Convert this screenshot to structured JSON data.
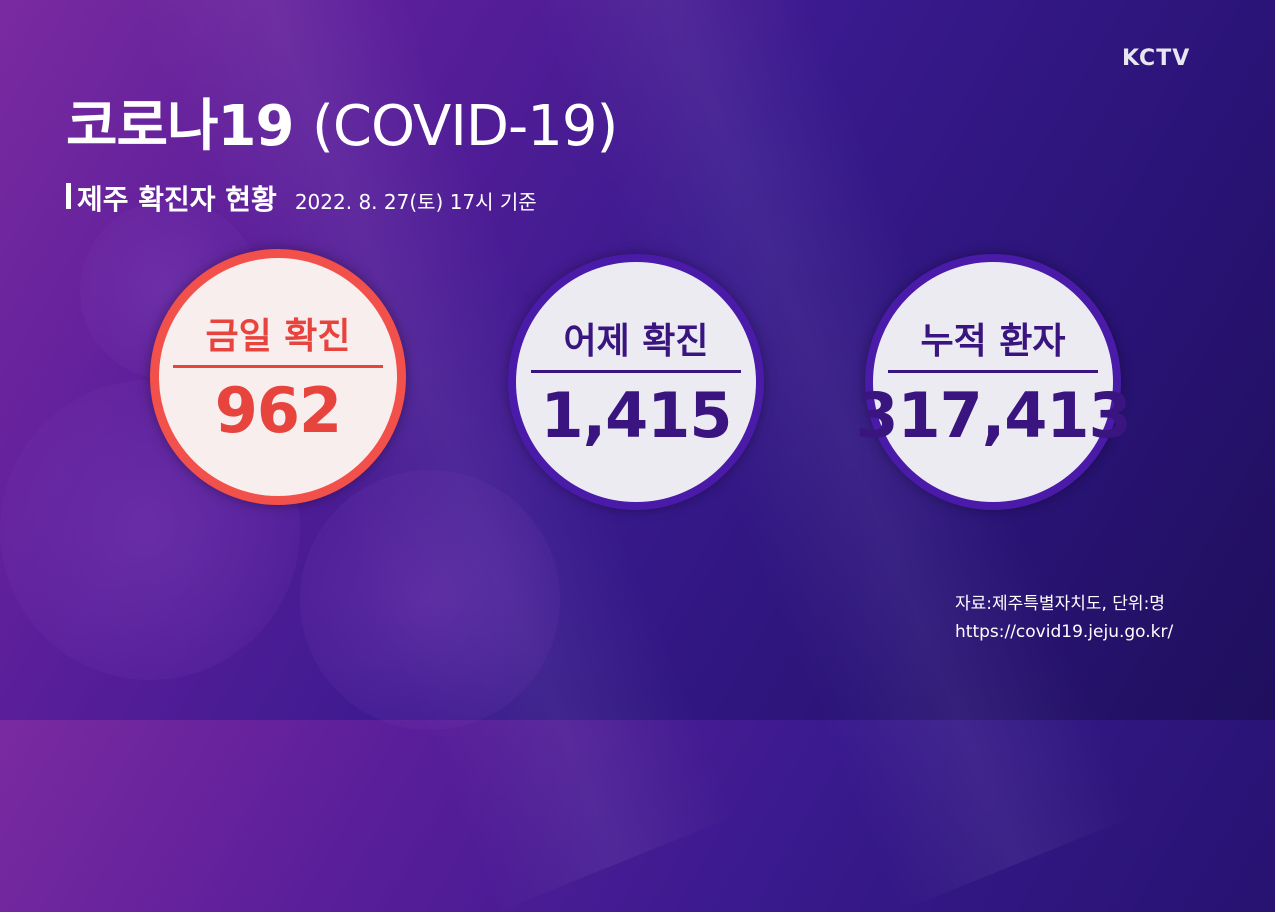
{
  "channel_logo": "KCTV",
  "title": {
    "ko": "코로나19",
    "en": "(COVID-19)"
  },
  "subtitle": {
    "label": "제주 확진자 현황",
    "date": "2022. 8. 27(토) 17시 기준"
  },
  "stats": [
    {
      "label": "금일 확진",
      "value": "962"
    },
    {
      "label": "어제 확진",
      "value": "1,415"
    },
    {
      "label": "누적 환자",
      "value": "317,413"
    }
  ],
  "source": {
    "text": "자료:제주특별자치도, 단위:명",
    "url": "https://covid19.jeju.go.kr/"
  },
  "colors": {
    "accent_red": "#e8443e",
    "accent_purple": "#3a1580"
  }
}
